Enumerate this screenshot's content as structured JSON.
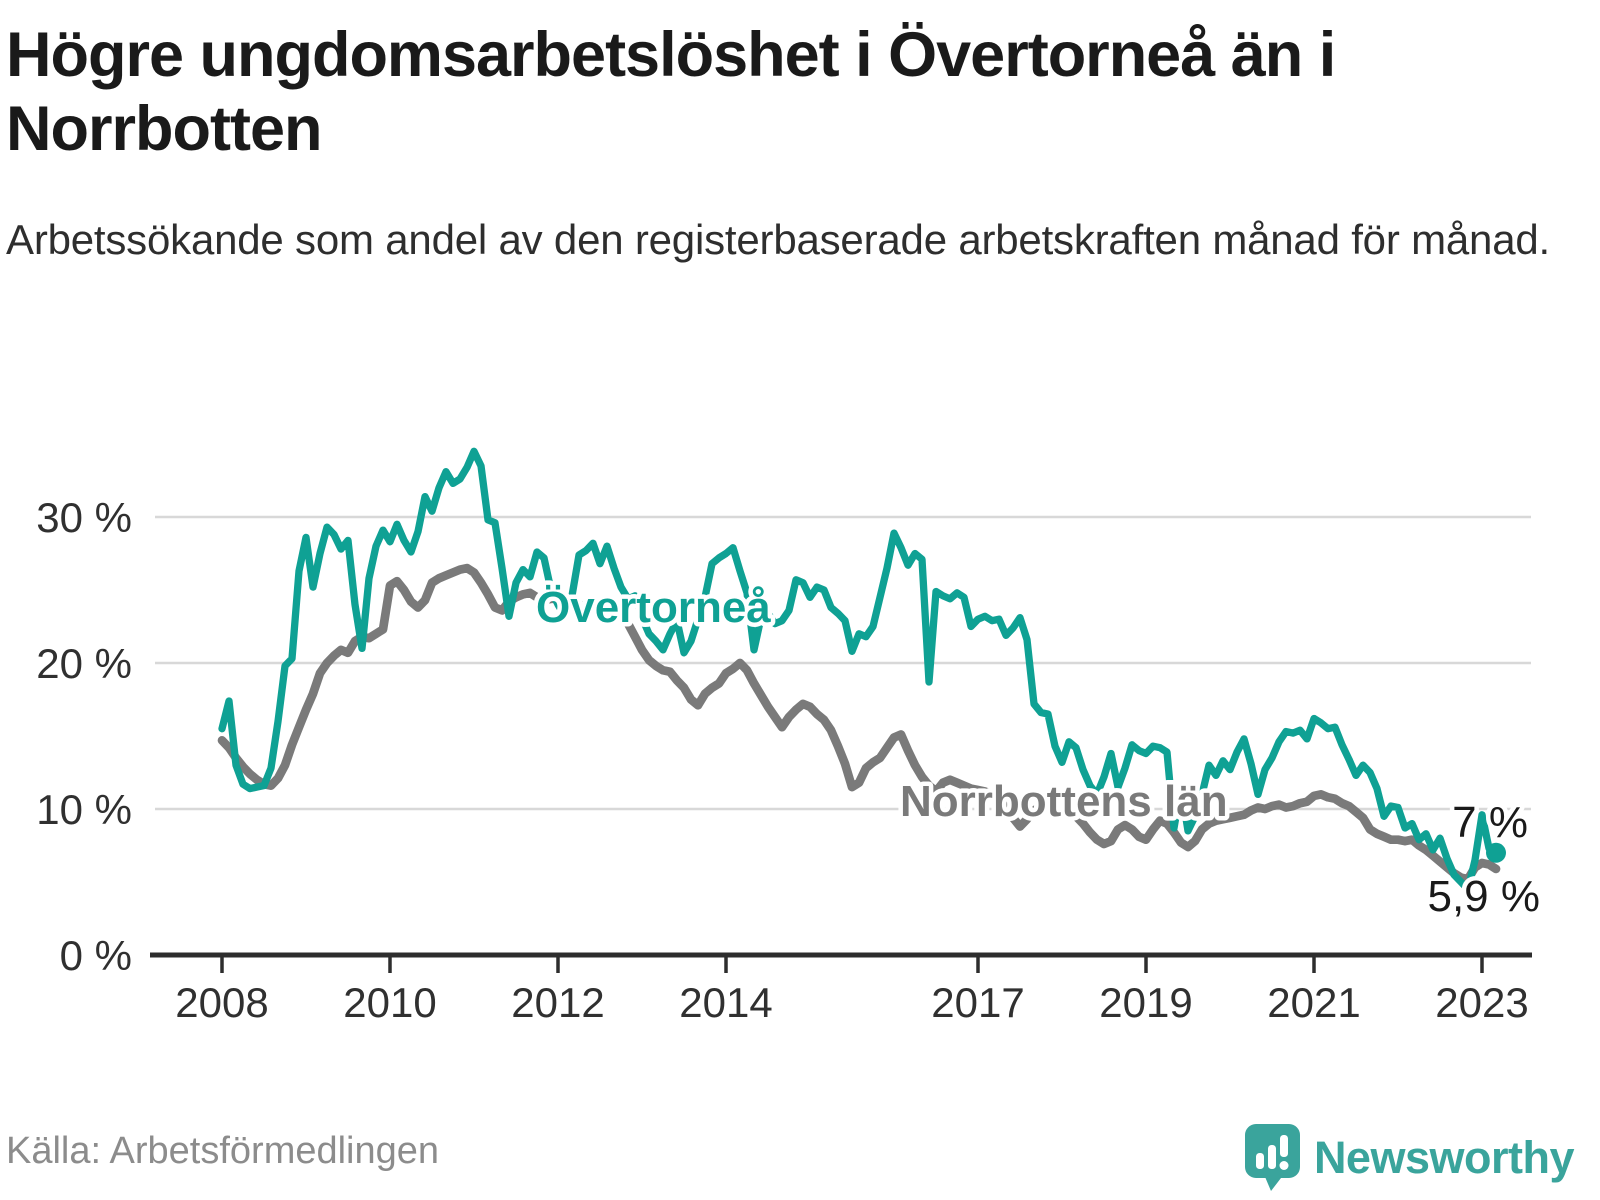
{
  "title": "Högre ungdomsarbetslöshet i Övertorneå än i Norrbotten",
  "subtitle": "Arbetssökande som andel av den registerbaserade arbetskraften månad för månad.",
  "source": "Källa: Arbetsförmedlingen",
  "brand": {
    "name": "Newsworthy"
  },
  "colors": {
    "accent_teal": "#0fa194",
    "line_gray": "#7a7a7a",
    "grid": "#d8d8d8",
    "axis": "#2d2d2d",
    "axis_text": "#303030",
    "annotation_text": "#1a1a1a",
    "source_gray": "#8c8c8c",
    "logo_teal": "#3aa49c",
    "background": "#ffffff"
  },
  "chart_data": {
    "type": "line",
    "title": "Högre ungdomsarbetslöshet i Övertorneå än i Norrbotten",
    "subtitle": "Arbetssökande som andel av den registerbaserade arbetskraften månad för månad.",
    "unit": "%",
    "frequency": "monthly",
    "x_start": "2008-01",
    "x_end": "2023-03",
    "xlabel": "",
    "ylabel": "",
    "ylim": [
      0,
      35
    ],
    "grid": "horizontal",
    "legend": "inline-labels",
    "x_ticks": [
      {
        "year": 2008,
        "label": "2008"
      },
      {
        "year": 2010,
        "label": "2010"
      },
      {
        "year": 2012,
        "label": "2012"
      },
      {
        "year": 2014,
        "label": "2014"
      },
      {
        "year": 2017,
        "label": "2017"
      },
      {
        "year": 2019,
        "label": "2019"
      },
      {
        "year": 2021,
        "label": "2021"
      },
      {
        "year": 2023,
        "label": "2023"
      }
    ],
    "y_ticks": [
      {
        "value": 0,
        "label": "0 %"
      },
      {
        "value": 10,
        "label": "10 %"
      },
      {
        "value": 20,
        "label": "20 %"
      },
      {
        "value": 30,
        "label": "30 %"
      }
    ],
    "series": [
      {
        "name": "Norrbottens län",
        "color": "#7a7a7a",
        "end_label": "5,9 %",
        "last_value": 5.9,
        "values": [
          14.7,
          14.2,
          13.5,
          12.9,
          12.4,
          12.0,
          11.7,
          11.6,
          12.1,
          13.0,
          14.4,
          15.6,
          16.8,
          17.9,
          19.3,
          20.0,
          20.5,
          20.9,
          20.7,
          21.5,
          21.8,
          21.7,
          22.0,
          22.3,
          25.3,
          25.6,
          25.0,
          24.2,
          23.8,
          24.3,
          25.5,
          25.8,
          26.0,
          26.2,
          26.4,
          26.5,
          26.2,
          25.5,
          24.7,
          23.8,
          23.6,
          24.2,
          24.5,
          24.7,
          24.8,
          24.5,
          24.3,
          24.4,
          24.4,
          24.3,
          24.1,
          24.0,
          23.8,
          23.6,
          23.8,
          24.0,
          23.8,
          23.2,
          22.7,
          21.8,
          20.9,
          20.2,
          19.8,
          19.5,
          19.4,
          18.8,
          18.3,
          17.5,
          17.1,
          17.9,
          18.3,
          18.6,
          19.3,
          19.6,
          20.0,
          19.5,
          18.6,
          17.8,
          17.0,
          16.3,
          15.6,
          16.3,
          16.8,
          17.2,
          17.0,
          16.5,
          16.1,
          15.4,
          14.3,
          13.1,
          11.5,
          11.8,
          12.8,
          13.2,
          13.5,
          14.2,
          14.9,
          15.1,
          14.0,
          13.0,
          12.2,
          11.6,
          11.2,
          11.8,
          12.0,
          11.8,
          11.6,
          11.4,
          11.3,
          11.2,
          11.0,
          10.8,
          10.2,
          9.4,
          8.8,
          9.3,
          9.9,
          10.2,
          10.3,
          10.2,
          10.0,
          9.8,
          9.5,
          9.0,
          8.4,
          7.9,
          7.6,
          7.8,
          8.6,
          8.9,
          8.6,
          8.1,
          7.9,
          8.6,
          9.2,
          9.0,
          8.4,
          7.7,
          7.4,
          7.8,
          8.6,
          9.0,
          9.2,
          9.3,
          9.4,
          9.5,
          9.6,
          9.9,
          10.1,
          10.0,
          10.2,
          10.3,
          10.1,
          10.2,
          10.4,
          10.5,
          10.9,
          11.0,
          10.8,
          10.7,
          10.4,
          10.2,
          9.8,
          9.4,
          8.6,
          8.3,
          8.1,
          7.9,
          7.9,
          7.8,
          7.9,
          7.5,
          7.2,
          6.8,
          6.4,
          6.0,
          5.6,
          5.3,
          5.2,
          6.0,
          6.3,
          6.2,
          5.9
        ]
      },
      {
        "name": "Övertorneå",
        "color": "#0fa194",
        "end_label": "7 %",
        "last_value": 7.0,
        "values": [
          15.5,
          17.4,
          13.0,
          11.7,
          11.4,
          11.5,
          11.6,
          12.8,
          16.0,
          19.8,
          20.3,
          26.3,
          28.6,
          25.2,
          27.5,
          29.3,
          28.8,
          27.8,
          28.4,
          24.0,
          21.0,
          25.8,
          28.0,
          29.1,
          28.3,
          29.5,
          28.4,
          27.6,
          29.0,
          31.4,
          30.4,
          32.0,
          33.1,
          32.3,
          32.6,
          33.4,
          34.5,
          33.5,
          29.8,
          29.6,
          26.5,
          23.2,
          25.5,
          26.4,
          25.9,
          27.6,
          27.2,
          25.0,
          24.0,
          23.2,
          24.6,
          27.4,
          27.7,
          28.2,
          26.8,
          28.0,
          26.5,
          25.2,
          24.4,
          24.6,
          23.1,
          22.0,
          21.5,
          20.9,
          22.0,
          22.9,
          20.7,
          21.5,
          23.0,
          24.5,
          26.8,
          27.2,
          27.5,
          27.9,
          26.3,
          24.8,
          20.9,
          23.1,
          23.4,
          22.7,
          22.9,
          23.6,
          25.7,
          25.5,
          24.5,
          25.2,
          25.0,
          23.8,
          23.4,
          22.9,
          20.8,
          22.0,
          21.8,
          22.5,
          24.5,
          26.5,
          28.9,
          27.9,
          26.7,
          27.5,
          27.1,
          18.7,
          24.9,
          24.6,
          24.4,
          24.8,
          24.5,
          22.5,
          23.0,
          23.2,
          22.9,
          23.0,
          21.9,
          22.4,
          23.1,
          21.6,
          17.2,
          16.6,
          16.5,
          14.3,
          13.2,
          14.6,
          14.2,
          12.7,
          11.6,
          11.0,
          12.2,
          13.8,
          11.5,
          12.8,
          14.4,
          14.0,
          13.8,
          14.3,
          14.2,
          13.9,
          8.7,
          11.5,
          8.5,
          9.5,
          11.0,
          13.0,
          12.3,
          13.3,
          12.7,
          13.9,
          14.8,
          13.1,
          11.0,
          12.7,
          13.5,
          14.6,
          15.3,
          15.2,
          15.4,
          14.8,
          16.2,
          15.9,
          15.5,
          15.6,
          14.4,
          13.4,
          12.3,
          13.0,
          12.5,
          11.4,
          9.5,
          10.2,
          10.1,
          8.7,
          9.0,
          7.9,
          8.3,
          7.2,
          8.0,
          6.6,
          5.5,
          5.0,
          4.5,
          6.5,
          9.6,
          7.3,
          7.0
        ]
      }
    ]
  }
}
